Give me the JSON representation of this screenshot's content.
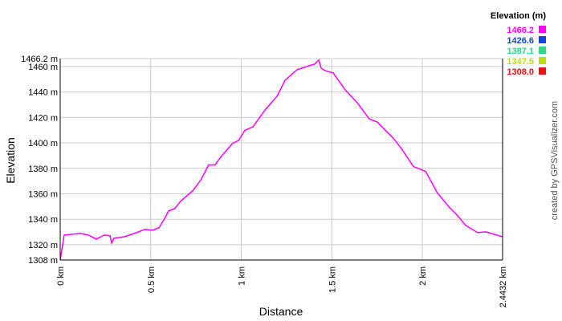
{
  "chart_data": {
    "type": "line",
    "x_label": "Distance",
    "y_label": "Elevation",
    "credit": "created by GPSVisualizer.com",
    "x": [
      0,
      0.009,
      0.022,
      0.111,
      0.155,
      0.2,
      0.244,
      0.275,
      0.284,
      0.297,
      0.355,
      0.421,
      0.466,
      0.51,
      0.545,
      0.576,
      0.599,
      0.634,
      0.665,
      0.732,
      0.776,
      0.82,
      0.856,
      0.887,
      0.953,
      0.984,
      1.02,
      1.064,
      1.131,
      1.197,
      1.242,
      1.308,
      1.375,
      1.406,
      1.428,
      1.441,
      1.463,
      1.508,
      1.574,
      1.641,
      1.707,
      1.752,
      1.796,
      1.84,
      1.885,
      1.951,
      2.018,
      2.084,
      2.151,
      2.195,
      2.239,
      2.306,
      2.35,
      2.4432
    ],
    "values": [
      1308,
      1316.2,
      1327.6,
      1328.9,
      1327.6,
      1324.4,
      1327.6,
      1327,
      1321.3,
      1325.1,
      1326.3,
      1329.5,
      1332,
      1331.4,
      1333.3,
      1340.3,
      1346.6,
      1348.5,
      1354.2,
      1362.4,
      1370.7,
      1382.7,
      1382.7,
      1389,
      1399.8,
      1401.7,
      1409.9,
      1412.5,
      1425.8,
      1436.5,
      1449.2,
      1457.4,
      1460.6,
      1461.9,
      1465,
      1458.7,
      1456.8,
      1454.9,
      1441.6,
      1431.5,
      1418.8,
      1416.3,
      1409.9,
      1403.6,
      1395.4,
      1381.4,
      1377.6,
      1360.5,
      1349.1,
      1342.8,
      1335.2,
      1329.5,
      1330.1,
      1326.3
    ],
    "xlim": [
      0,
      2.4432
    ],
    "xticks": [
      {
        "value": 0,
        "label": "0 km"
      },
      {
        "value": 0.5,
        "label": "0.5 km"
      },
      {
        "value": 1,
        "label": "1 km"
      },
      {
        "value": 1.5,
        "label": "1.5 km"
      },
      {
        "value": 2,
        "label": "2 km"
      },
      {
        "value": 2.4432,
        "label": "2.4432 km"
      }
    ],
    "ylim": [
      1308,
      1466.2
    ],
    "yticks": [
      {
        "value": 1308,
        "label": "1308 m"
      },
      {
        "value": 1320,
        "label": "1320 m"
      },
      {
        "value": 1340,
        "label": "1340 m"
      },
      {
        "value": 1360,
        "label": "1360 m"
      },
      {
        "value": 1380,
        "label": "1380 m"
      },
      {
        "value": 1400,
        "label": "1400 m"
      },
      {
        "value": 1420,
        "label": "1420 m"
      },
      {
        "value": 1440,
        "label": "1440 m"
      },
      {
        "value": 1460,
        "label": "1460 m"
      },
      {
        "value": 1466.2,
        "label": "1466.2 m"
      }
    ],
    "grid": true,
    "legend": {
      "title": "Elevation (m)",
      "entries": [
        1466.2,
        1426.6,
        1387.1,
        1347.5,
        {
          "value": 1308,
          "label": "1308.0"
        }
      ],
      "colors": [
        "#ff00ff",
        "#1144dd",
        "#22dd88",
        "#bbdd11",
        "#ee1111"
      ]
    }
  }
}
